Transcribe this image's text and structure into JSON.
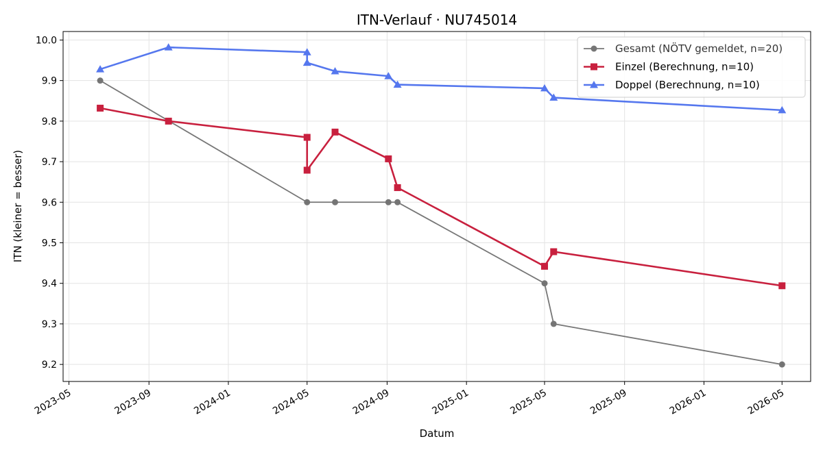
{
  "chart_data": {
    "type": "line",
    "title": "ITN-Verlauf · NU745014",
    "xlabel": "Datum",
    "ylabel": "ITN  (kleiner = besser)",
    "xlim": [
      "2023-04-22",
      "2026-06-14"
    ],
    "ylim": [
      9.158,
      10.021
    ],
    "x_ticks": [
      "2023-05-01",
      "2023-09-01",
      "2024-01-01",
      "2024-05-01",
      "2024-09-01",
      "2025-01-01",
      "2025-05-01",
      "2025-09-01",
      "2026-01-01",
      "2026-05-01"
    ],
    "x_tick_labels": [
      "2023-05",
      "2023-09",
      "2024-01",
      "2024-05",
      "2024-09",
      "2025-01",
      "2025-05",
      "2025-09",
      "2026-01",
      "2026-05"
    ],
    "y_ticks": [
      9.2,
      9.3,
      9.4,
      9.5,
      9.6,
      9.7,
      9.8,
      9.9,
      10.0
    ],
    "y_tick_labels": [
      "9.2",
      "9.3",
      "9.4",
      "9.5",
      "9.6",
      "9.7",
      "9.8",
      "9.9",
      "10.0"
    ],
    "grid": true,
    "legend_position": "top-right",
    "series": [
      {
        "name": "Gesamt (NÖTV gemeldet, n=20)",
        "color": "#555555",
        "marker": "circle",
        "points": [
          {
            "x": "2023-06-18",
            "y": 9.9
          },
          {
            "x": "2024-05-01",
            "y": 9.6
          },
          {
            "x": "2024-06-13",
            "y": 9.6
          },
          {
            "x": "2024-09-03",
            "y": 9.6
          },
          {
            "x": "2024-09-17",
            "y": 9.6
          },
          {
            "x": "2025-05-01",
            "y": 9.4
          },
          {
            "x": "2025-05-15",
            "y": 9.3
          },
          {
            "x": "2026-05-01",
            "y": 9.2
          }
        ]
      },
      {
        "name": "Einzel (Berechnung, n=10)",
        "color": "#c8203e",
        "marker": "square",
        "points": [
          {
            "x": "2023-06-18",
            "y": 9.832
          },
          {
            "x": "2023-10-01",
            "y": 9.8
          },
          {
            "x": "2024-05-01",
            "y": 9.76
          },
          {
            "x": "2024-05-01",
            "y": 9.679
          },
          {
            "x": "2024-06-13",
            "y": 9.773
          },
          {
            "x": "2024-09-03",
            "y": 9.707
          },
          {
            "x": "2024-09-17",
            "y": 9.636
          },
          {
            "x": "2025-05-01",
            "y": 9.442
          },
          {
            "x": "2025-05-15",
            "y": 9.478
          },
          {
            "x": "2026-05-01",
            "y": 9.394
          }
        ]
      },
      {
        "name": "Doppel (Berechnung, n=10)",
        "color": "#5577ee",
        "marker": "triangle",
        "points": [
          {
            "x": "2023-06-18",
            "y": 9.928
          },
          {
            "x": "2023-10-01",
            "y": 9.982
          },
          {
            "x": "2024-05-01",
            "y": 9.97
          },
          {
            "x": "2024-05-01",
            "y": 9.944
          },
          {
            "x": "2024-06-13",
            "y": 9.923
          },
          {
            "x": "2024-09-03",
            "y": 9.911
          },
          {
            "x": "2024-09-17",
            "y": 9.89
          },
          {
            "x": "2025-05-01",
            "y": 9.881
          },
          {
            "x": "2025-05-15",
            "y": 9.858
          },
          {
            "x": "2026-05-01",
            "y": 9.827
          }
        ]
      }
    ]
  }
}
